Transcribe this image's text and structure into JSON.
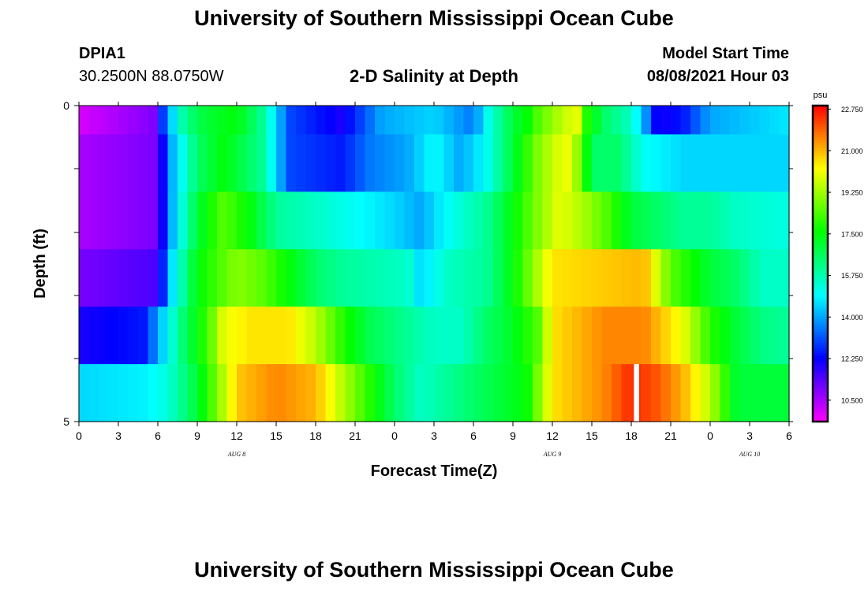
{
  "page": {
    "title_top": "University of Southern Mississippi Ocean Cube",
    "title_bottom": "University of Southern Mississippi Ocean Cube",
    "station_name": "DPIA1",
    "station_coords": "30.2500N  88.0750W",
    "plot_title": "2-D Salinity at Depth",
    "model_label": "Model Start Time",
    "model_time": "08/08/2021 Hour 03"
  },
  "chart_data": {
    "type": "heatmap",
    "title": "2-D Salinity at Depth",
    "xlabel": "Forecast Time(Z)",
    "ylabel": "Depth (ft)",
    "colorbar_unit": "psu",
    "x_ticks": [
      "0",
      "3",
      "6",
      "9",
      "12",
      "15",
      "18",
      "21",
      "0",
      "3",
      "6",
      "9",
      "12",
      "15",
      "18",
      "21",
      "0",
      "3",
      "6"
    ],
    "x_range_hours": [
      0,
      54
    ],
    "date_labels": [
      {
        "label": "AUG 8",
        "hour": 12
      },
      {
        "label": "AUG 9",
        "hour": 36
      },
      {
        "label": "AUG 10",
        "hour": 51
      }
    ],
    "y_ticks": [
      "0",
      "5"
    ],
    "depth_range": [
      0,
      5
    ],
    "depth_levels": [
      0,
      1,
      2,
      3,
      4,
      5
    ],
    "colorbar_ticks": [
      "22.750",
      "21.000",
      "19.250",
      "17.500",
      "15.750",
      "14.000",
      "12.250",
      "10.500"
    ],
    "value_range": [
      9.6,
      22.9
    ],
    "profiles": [
      [
        [
          0,
          10
        ],
        [
          6,
          11
        ],
        [
          6.5,
          13.5
        ],
        [
          8,
          16
        ],
        [
          9.5,
          17
        ],
        [
          12,
          17.5
        ],
        [
          14,
          16
        ],
        [
          16,
          13
        ],
        [
          20,
          12
        ],
        [
          23,
          14
        ],
        [
          27,
          14.5
        ],
        [
          30,
          13.5
        ],
        [
          31,
          15
        ],
        [
          33,
          17
        ],
        [
          34,
          17.5
        ],
        [
          35,
          18.5
        ],
        [
          37,
          19.7
        ],
        [
          38,
          20
        ],
        [
          38.5,
          18
        ],
        [
          40,
          16.5
        ],
        [
          42,
          15.5
        ],
        [
          43,
          14
        ],
        [
          44,
          12
        ],
        [
          46,
          12.5
        ],
        [
          48,
          14
        ],
        [
          54,
          14.7
        ]
      ],
      [
        [
          0,
          10.5
        ],
        [
          6,
          11
        ],
        [
          7,
          14
        ],
        [
          9,
          16.5
        ],
        [
          11,
          17.5
        ],
        [
          14,
          16
        ],
        [
          16,
          13
        ],
        [
          20,
          12.5
        ],
        [
          22,
          13.5
        ],
        [
          25,
          14
        ],
        [
          27,
          15
        ],
        [
          29,
          14
        ],
        [
          31,
          15
        ],
        [
          33,
          17
        ],
        [
          35,
          19
        ],
        [
          37,
          20.2
        ],
        [
          38,
          19
        ],
        [
          39,
          16.5
        ],
        [
          41,
          16.5
        ],
        [
          43,
          15
        ],
        [
          46,
          14.5
        ],
        [
          54,
          14.5
        ]
      ],
      [
        [
          0,
          10.5
        ],
        [
          6,
          11
        ],
        [
          7,
          14
        ],
        [
          9,
          17
        ],
        [
          11,
          18.5
        ],
        [
          13,
          17.5
        ],
        [
          15,
          16
        ],
        [
          18,
          15.5
        ],
        [
          21,
          15
        ],
        [
          24,
          14.5
        ],
        [
          26,
          14
        ],
        [
          28,
          15
        ],
        [
          31,
          16
        ],
        [
          33,
          17.5
        ],
        [
          35,
          19
        ],
        [
          36.5,
          20
        ],
        [
          38,
          19.5
        ],
        [
          40,
          18.5
        ],
        [
          42,
          17
        ],
        [
          44,
          16.5
        ],
        [
          46,
          16
        ],
        [
          48,
          16
        ],
        [
          50,
          15.5
        ],
        [
          54,
          15.2
        ]
      ],
      [
        [
          0,
          11
        ],
        [
          6,
          11.5
        ],
        [
          7,
          14.5
        ],
        [
          9,
          17.5
        ],
        [
          11,
          18.5
        ],
        [
          12,
          19
        ],
        [
          14,
          18.5
        ],
        [
          16,
          17.5
        ],
        [
          18,
          16.5
        ],
        [
          20,
          16
        ],
        [
          25,
          15.5
        ],
        [
          26,
          14.5
        ],
        [
          28,
          15.5
        ],
        [
          31,
          16
        ],
        [
          33,
          17.5
        ],
        [
          35,
          19.5
        ],
        [
          36,
          20.5
        ],
        [
          43,
          21
        ],
        [
          45,
          18.5
        ],
        [
          48,
          17
        ],
        [
          50,
          16.5
        ],
        [
          52,
          15.5
        ],
        [
          54,
          15.5
        ]
      ],
      [
        [
          0,
          12
        ],
        [
          5,
          12.5
        ],
        [
          6,
          14
        ],
        [
          8,
          16.5
        ],
        [
          10,
          18.5
        ],
        [
          11,
          20
        ],
        [
          13,
          20.5
        ],
        [
          16,
          20.5
        ],
        [
          18,
          19.5
        ],
        [
          20,
          18
        ],
        [
          22,
          16.8
        ],
        [
          25,
          16
        ],
        [
          27,
          15.5
        ],
        [
          29,
          15.5
        ],
        [
          31,
          16.5
        ],
        [
          33,
          17.2
        ],
        [
          35,
          18.5
        ],
        [
          36,
          20.5
        ],
        [
          40,
          21.5
        ],
        [
          43,
          21.5
        ],
        [
          46,
          20
        ],
        [
          48,
          18
        ],
        [
          50,
          17
        ],
        [
          52,
          16.2
        ],
        [
          54,
          16
        ]
      ],
      [
        [
          0,
          14.5
        ],
        [
          5,
          14.8
        ],
        [
          6,
          15
        ],
        [
          7,
          15.5
        ],
        [
          9,
          17
        ],
        [
          11,
          19.5
        ],
        [
          12,
          20.8
        ],
        [
          15,
          21.5
        ],
        [
          18,
          21
        ],
        [
          20,
          19.5
        ],
        [
          22,
          18
        ],
        [
          24,
          16.5
        ],
        [
          26,
          15.5
        ],
        [
          28,
          16
        ],
        [
          30,
          16.5
        ],
        [
          32,
          17
        ],
        [
          34,
          17.5
        ],
        [
          35,
          19
        ],
        [
          36,
          20.5
        ],
        [
          40,
          21.5
        ],
        [
          42,
          22.5
        ],
        [
          44,
          22
        ],
        [
          46,
          21
        ],
        [
          48,
          19.5
        ],
        [
          50,
          17
        ],
        [
          52,
          17
        ],
        [
          54,
          17
        ]
      ]
    ],
    "missing_intervals": [
      {
        "depth_layer": 5,
        "hour_start": 42.2,
        "hour_end": 42.6
      }
    ]
  }
}
